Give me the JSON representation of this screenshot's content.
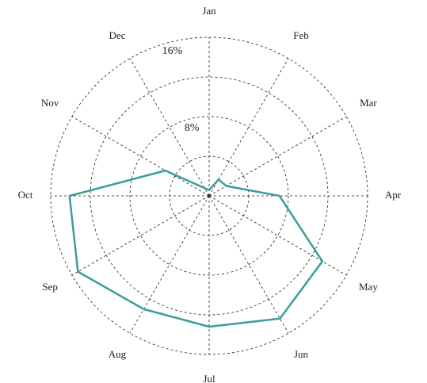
{
  "chart_data": {
    "type": "radar",
    "categories": [
      "Jan",
      "Feb",
      "Mar",
      "Apr",
      "May",
      "Jun",
      "Jul",
      "Aug",
      "Sep",
      "Oct",
      "Nov",
      "Dec"
    ],
    "values": [
      0.6,
      1.9,
      2.0,
      7.1,
      13.2,
      14.3,
      13.2,
      13.2,
      15.3,
      14.1,
      5.1,
      0.9
    ],
    "color": "#3a9e9a",
    "ylim": [
      0,
      16
    ],
    "yticks": [
      {
        "value": 8,
        "label": "8%"
      },
      {
        "value": 16,
        "label": "16%"
      }
    ],
    "yticks_minor": [
      4,
      12
    ],
    "grid": true
  }
}
